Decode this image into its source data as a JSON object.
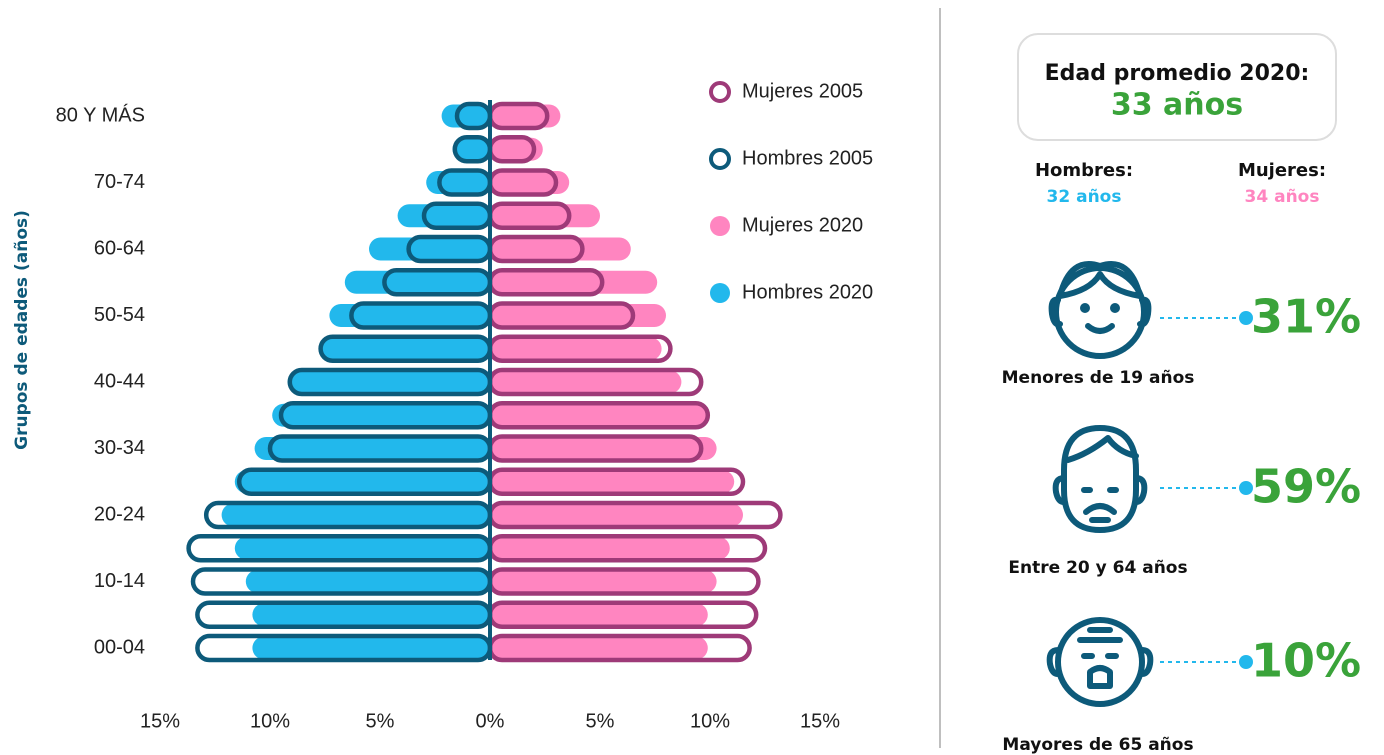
{
  "chart_data": {
    "type": "pyramid",
    "ylabel": "Grupos de edades (años)",
    "categories": [
      "00-04",
      null,
      "10-14",
      null,
      "20-24",
      null,
      "30-34",
      null,
      "40-44",
      null,
      "50-54",
      null,
      "60-64",
      null,
      "70-74",
      null,
      "80 Y MÁS"
    ],
    "series": [
      {
        "name": "Mujeres 2005",
        "color": "#9e3a78",
        "style": "outline",
        "side": "right",
        "values": [
          11.8,
          12.1,
          12.2,
          12.5,
          13.2,
          11.5,
          9.6,
          9.9,
          9.6,
          8.2,
          6.5,
          5.1,
          4.2,
          3.6,
          3.0,
          2.0,
          2.6
        ]
      },
      {
        "name": "Hombres 2005",
        "color": "#0d5a7a",
        "style": "outline",
        "side": "left",
        "values": [
          13.3,
          13.3,
          13.5,
          13.7,
          12.9,
          11.4,
          10.0,
          9.5,
          9.1,
          7.7,
          6.3,
          4.8,
          3.7,
          3.0,
          2.3,
          1.6,
          1.5
        ]
      },
      {
        "name": "Mujeres 2020",
        "color": "#ff85c0",
        "style": "fill",
        "side": "right",
        "values": [
          9.9,
          9.9,
          10.3,
          10.9,
          11.5,
          11.1,
          10.3,
          9.9,
          8.7,
          7.8,
          8.0,
          7.6,
          6.4,
          5.0,
          3.6,
          2.4,
          3.2
        ]
      },
      {
        "name": "Hombres 2020",
        "color": "#22b8ec",
        "style": "fill",
        "side": "left",
        "values": [
          10.8,
          10.8,
          11.1,
          11.6,
          12.2,
          11.6,
          10.7,
          9.9,
          9.2,
          7.7,
          7.3,
          6.6,
          5.5,
          4.2,
          2.9,
          1.7,
          2.2
        ]
      }
    ],
    "xlim": [
      -15,
      15
    ],
    "xticks": [
      {
        "value": -15,
        "label": "15%"
      },
      {
        "value": -10,
        "label": "10%"
      },
      {
        "value": -5,
        "label": "5%"
      },
      {
        "value": 0,
        "label": "0%"
      },
      {
        "value": 5,
        "label": "5%"
      },
      {
        "value": 10,
        "label": "10%"
      },
      {
        "value": 15,
        "label": "15%"
      }
    ],
    "legend": "top-right"
  },
  "panel": {
    "title": "Edad promedio 2020:",
    "average": "33 años",
    "men_label": "Hombres:",
    "men_value": "32 años",
    "women_label": "Mujeres:",
    "women_value": "34 años",
    "groups": [
      {
        "label": "Menores de 19 años",
        "value": "31%"
      },
      {
        "label": "Entre 20 y 64 años",
        "value": "59%"
      },
      {
        "label": "Mayores de 65 años",
        "value": "10%"
      }
    ]
  }
}
